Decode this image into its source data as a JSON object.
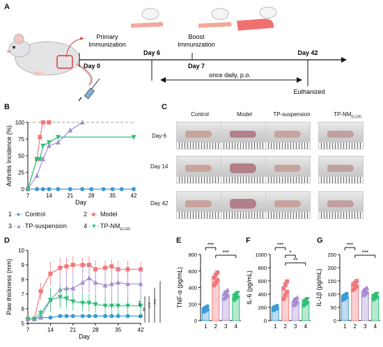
{
  "panels": {
    "A": "A",
    "B": "B",
    "C": "C",
    "D": "D",
    "E": "E",
    "F": "F",
    "G": "G"
  },
  "timeline": {
    "primary": "Primary",
    "immunization": "Immunization",
    "boost": "Boost",
    "boost_immunization": "Immunization",
    "day0": "Day 0",
    "day6": "Day 6",
    "day7": "Day 7",
    "day42": "Day 42",
    "once_daily": "once daily, p.o.",
    "euthanized": "Euthanized"
  },
  "photo_grid": {
    "columns": [
      "Control",
      "Model",
      "TP-suspension",
      "TP-NM"
    ],
    "tp_nm_subscript": "EL100",
    "rows": [
      "Day 6",
      "Day 14",
      "Day 42"
    ]
  },
  "legend": {
    "items": [
      {
        "num": "1",
        "name": "Control",
        "color": "#3c9ad6",
        "marker": "circle"
      },
      {
        "num": "2",
        "name": "Model",
        "color": "#f0787a",
        "marker": "square"
      },
      {
        "num": "3",
        "name": "TP-suspension",
        "color": "#a58dd1",
        "marker": "triangle"
      },
      {
        "num": "4",
        "name": "TP-NM",
        "sub": "EL100",
        "color": "#2ebf78",
        "marker": "triangle-down"
      }
    ]
  },
  "chart_data": [
    {
      "type": "line",
      "panel": "B",
      "ylabel": "Arthritis Incidence (%)",
      "xlabel": "Day",
      "xlim": [
        7,
        42
      ],
      "ylim": [
        0,
        100
      ],
      "xticks": [
        7,
        14,
        21,
        28,
        35,
        42
      ],
      "yticks": [
        0,
        25,
        50,
        75,
        100
      ],
      "reference_line": 100,
      "series": [
        {
          "name": "Control",
          "x": [
            7,
            10,
            12,
            14,
            17,
            21,
            25,
            28,
            32,
            35,
            38,
            42
          ],
          "y": [
            0,
            0,
            0,
            0,
            0,
            0,
            0,
            0,
            0,
            0,
            0,
            0
          ]
        },
        {
          "name": "Model",
          "x": [
            7,
            10,
            11,
            12,
            14
          ],
          "y": [
            0,
            45,
            78,
            100,
            100
          ]
        },
        {
          "name": "TP-suspension",
          "x": [
            7,
            10,
            12,
            14,
            17,
            21,
            25
          ],
          "y": [
            0,
            20,
            45,
            65,
            70,
            88,
            100
          ]
        },
        {
          "name": "TP-NM",
          "x": [
            7,
            10,
            11,
            12,
            14,
            17,
            42
          ],
          "y": [
            0,
            45,
            45,
            65,
            70,
            78,
            78
          ]
        }
      ]
    },
    {
      "type": "line",
      "panel": "D",
      "ylabel": "Paw thickness (mm)",
      "xlabel": "Day",
      "xlim": [
        7,
        42
      ],
      "ylim": [
        5,
        10
      ],
      "xticks": [
        7,
        14,
        21,
        28,
        35,
        42
      ],
      "yticks": [
        5,
        6,
        7,
        8,
        9,
        10
      ],
      "series": [
        {
          "name": "Control",
          "x": [
            7,
            9,
            11,
            14,
            17,
            19,
            21,
            24,
            26,
            28,
            31,
            33,
            35,
            38,
            42
          ],
          "y": [
            5.3,
            5.3,
            5.4,
            5.4,
            5.5,
            5.5,
            5.5,
            5.5,
            5.5,
            5.5,
            5.5,
            5.5,
            5.5,
            5.5,
            5.5
          ],
          "err": [
            0.05,
            0.05,
            0.05,
            0.1,
            0.1,
            0.1,
            0.1,
            0.1,
            0.1,
            0.1,
            0.1,
            0.1,
            0.1,
            0.1,
            0.1
          ]
        },
        {
          "name": "Model",
          "x": [
            7,
            9,
            11,
            14,
            17,
            19,
            21,
            24,
            26,
            28,
            31,
            33,
            35,
            38,
            42
          ],
          "y": [
            5.3,
            5.3,
            7.2,
            8.4,
            8.8,
            8.9,
            9.0,
            9.0,
            9.0,
            8.7,
            8.8,
            8.9,
            8.7,
            8.7,
            8.7
          ],
          "err": [
            0.05,
            0.1,
            0.6,
            0.8,
            0.7,
            0.6,
            0.6,
            0.5,
            0.6,
            0.6,
            0.5,
            0.5,
            0.6,
            0.6,
            0.5
          ]
        },
        {
          "name": "TP-suspension",
          "x": [
            7,
            9,
            11,
            14,
            17,
            19,
            21,
            24,
            26,
            28,
            31,
            33,
            35,
            38,
            42
          ],
          "y": [
            5.3,
            5.3,
            5.4,
            6.6,
            7.3,
            7.4,
            7.4,
            7.8,
            8.1,
            7.8,
            7.6,
            7.7,
            7.8,
            7.7,
            7.7
          ],
          "err": [
            0.05,
            0.05,
            0.1,
            0.8,
            1.0,
            1.1,
            1.1,
            1.0,
            1.0,
            1.0,
            1.0,
            1.0,
            1.0,
            1.0,
            1.0
          ]
        },
        {
          "name": "TP-NM",
          "x": [
            7,
            9,
            11,
            14,
            17,
            19,
            21,
            24,
            26,
            28,
            31,
            33,
            35,
            38,
            42
          ],
          "y": [
            5.3,
            5.3,
            5.7,
            6.6,
            6.8,
            6.7,
            6.5,
            6.4,
            6.4,
            6.3,
            6.2,
            6.2,
            6.2,
            6.2,
            6.2
          ],
          "err": [
            0.05,
            0.05,
            0.3,
            0.8,
            0.8,
            0.7,
            0.6,
            0.6,
            0.6,
            0.6,
            0.6,
            0.6,
            0.6,
            0.6,
            0.6
          ]
        }
      ],
      "significance": [
        "*",
        "**",
        "***",
        "***",
        "***"
      ]
    },
    {
      "type": "bar",
      "panel": "E",
      "ylabel": "TNF-α (pg/mL)",
      "categories": [
        "1",
        "2",
        "3",
        "4"
      ],
      "values": [
        140,
        505,
        315,
        290
      ],
      "err": [
        30,
        70,
        45,
        40
      ],
      "ylim": [
        0,
        800
      ],
      "yticks": [
        0,
        200,
        400,
        600,
        800
      ],
      "significance": [
        {
          "pair": [
            1,
            2
          ],
          "label": "***"
        },
        {
          "pair": [
            2,
            4
          ],
          "label": "***"
        }
      ]
    },
    {
      "type": "bar",
      "panel": "F",
      "ylabel": "IL-6 (pg/mL)",
      "categories": [
        "1",
        "2",
        "3",
        "4"
      ],
      "values": [
        190,
        460,
        290,
        275
      ],
      "err": [
        30,
        120,
        50,
        45
      ],
      "ylim": [
        0,
        1000
      ],
      "yticks": [
        0,
        200,
        400,
        600,
        800,
        1000
      ],
      "significance": [
        {
          "pair": [
            1,
            2
          ],
          "label": "***"
        },
        {
          "pair": [
            2,
            3
          ],
          "label": "*"
        },
        {
          "pair": [
            2,
            4
          ],
          "label": "**"
        }
      ]
    },
    {
      "type": "bar",
      "panel": "G",
      "ylabel": "IL-1β (pg/mL)",
      "categories": [
        "1",
        "2",
        "3",
        "4"
      ],
      "values": [
        90,
        133,
        110,
        90
      ],
      "err": [
        10,
        15,
        12,
        10
      ],
      "ylim": [
        0,
        250
      ],
      "yticks": [
        0,
        50,
        100,
        150,
        200,
        250
      ],
      "significance": [
        {
          "pair": [
            1,
            2
          ],
          "label": "***"
        },
        {
          "pair": [
            2,
            4
          ],
          "label": "***"
        }
      ]
    }
  ]
}
